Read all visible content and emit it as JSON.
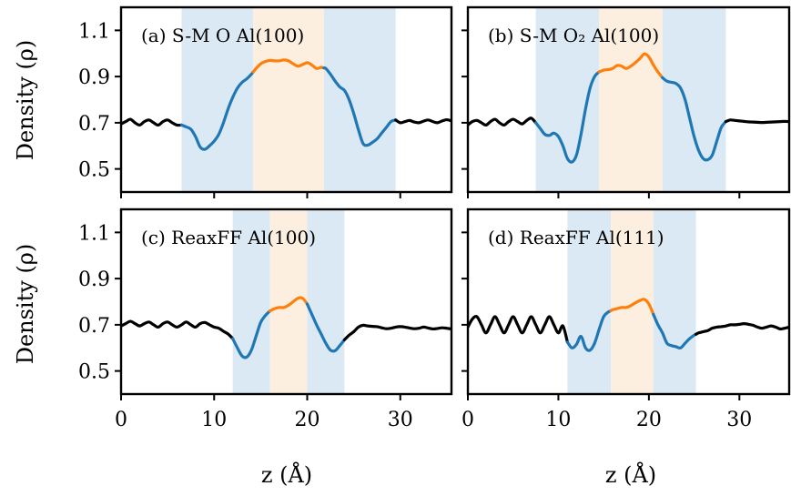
{
  "figure": {
    "ylabel": "Density (ρ)",
    "xlabel": "z (Å)"
  },
  "chart_data": [
    {
      "type": "line",
      "id": "a",
      "label": "(a) S-M O Al(100)",
      "xlim": [
        0,
        35.5
      ],
      "ylim": [
        0.4,
        1.2
      ],
      "xticks": [
        0,
        10,
        20,
        30
      ],
      "xtick_labels": [
        "0",
        "10",
        "20",
        "30"
      ],
      "yticks": [
        0.5,
        0.7,
        0.9,
        1.1
      ],
      "ytick_labels": [
        "0.5",
        "0.7",
        "0.9",
        "1.1"
      ],
      "regions": [
        {
          "kind": "interface",
          "x0": 6.5,
          "x1": 14.2,
          "color": "#dbe9f5"
        },
        {
          "kind": "core",
          "x0": 14.2,
          "x1": 21.8,
          "color": "#fdefdf"
        },
        {
          "kind": "interface",
          "x0": 21.8,
          "x1": 29.5,
          "color": "#dbe9f5"
        }
      ],
      "curve": {
        "x": [
          0,
          0.5,
          1,
          1.5,
          2,
          2.5,
          3,
          3.5,
          4,
          4.5,
          5,
          5.5,
          6,
          6.5,
          7,
          7.5,
          8,
          8.5,
          9,
          9.5,
          10,
          10.5,
          11,
          11.5,
          12,
          12.5,
          13,
          13.5,
          14,
          14.5,
          15,
          15.5,
          16,
          16.5,
          17,
          17.5,
          18,
          18.5,
          19,
          19.5,
          20,
          20.5,
          21,
          21.5,
          22,
          22.5,
          23,
          23.5,
          24,
          24.5,
          25,
          25.5,
          26,
          26.5,
          27,
          27.5,
          28,
          28.5,
          29,
          29.5,
          30,
          30.5,
          31,
          31.5,
          32,
          32.5,
          33,
          33.5,
          34,
          34.5,
          35,
          35.5
        ],
        "y": [
          0.695,
          0.705,
          0.715,
          0.7,
          0.69,
          0.705,
          0.712,
          0.7,
          0.69,
          0.705,
          0.712,
          0.7,
          0.69,
          0.69,
          0.682,
          0.672,
          0.64,
          0.595,
          0.585,
          0.6,
          0.62,
          0.65,
          0.7,
          0.76,
          0.81,
          0.85,
          0.875,
          0.89,
          0.91,
          0.935,
          0.955,
          0.965,
          0.97,
          0.968,
          0.968,
          0.972,
          0.968,
          0.955,
          0.945,
          0.952,
          0.96,
          0.95,
          0.935,
          0.94,
          0.935,
          0.91,
          0.88,
          0.855,
          0.84,
          0.8,
          0.74,
          0.67,
          0.61,
          0.603,
          0.615,
          0.63,
          0.655,
          0.68,
          0.705,
          0.712,
          0.7,
          0.705,
          0.71,
          0.703,
          0.7,
          0.707,
          0.712,
          0.705,
          0.7,
          0.708,
          0.713,
          0.708
        ]
      }
    },
    {
      "type": "line",
      "id": "b",
      "label": "(b) S-M O₂ Al(100)",
      "xlim": [
        0,
        35.5
      ],
      "ylim": [
        0.4,
        1.2
      ],
      "xticks": [
        0,
        10,
        20,
        30
      ],
      "xtick_labels": [
        "0",
        "10",
        "20",
        "30"
      ],
      "yticks": [
        0.5,
        0.7,
        0.9,
        1.1
      ],
      "ytick_labels": [
        "0.5",
        "0.7",
        "0.9",
        "1.1"
      ],
      "regions": [
        {
          "kind": "interface",
          "x0": 7.5,
          "x1": 14.5,
          "color": "#dbe9f5"
        },
        {
          "kind": "core",
          "x0": 14.5,
          "x1": 21.5,
          "color": "#fdefdf"
        },
        {
          "kind": "interface",
          "x0": 21.5,
          "x1": 28.5,
          "color": "#dbe9f5"
        }
      ],
      "curve": {
        "x": [
          0,
          0.5,
          1,
          1.5,
          2,
          2.5,
          3,
          3.5,
          4,
          4.5,
          5,
          5.5,
          6,
          6.5,
          7,
          7.5,
          8,
          8.5,
          9,
          9.5,
          10,
          10.5,
          11,
          11.5,
          12,
          12.5,
          13,
          13.5,
          14,
          14.5,
          15,
          15.5,
          16,
          16.5,
          17,
          17.5,
          18,
          18.5,
          19,
          19.5,
          20,
          20.5,
          21,
          21.5,
          22,
          22.5,
          23,
          23.5,
          24,
          24.5,
          25,
          25.5,
          26,
          26.5,
          27,
          27.5,
          28,
          28.5,
          29,
          29.5,
          30,
          30.5,
          31,
          31.5,
          32,
          32.5,
          33,
          33.5,
          34,
          34.5,
          35,
          35.5
        ],
        "y": [
          0.69,
          0.705,
          0.71,
          0.7,
          0.69,
          0.705,
          0.715,
          0.7,
          0.69,
          0.705,
          0.715,
          0.705,
          0.695,
          0.71,
          0.72,
          0.7,
          0.675,
          0.65,
          0.645,
          0.655,
          0.64,
          0.6,
          0.545,
          0.53,
          0.56,
          0.65,
          0.76,
          0.85,
          0.9,
          0.92,
          0.928,
          0.93,
          0.935,
          0.948,
          0.945,
          0.935,
          0.945,
          0.96,
          0.978,
          0.998,
          0.985,
          0.95,
          0.92,
          0.895,
          0.88,
          0.875,
          0.87,
          0.85,
          0.8,
          0.72,
          0.64,
          0.58,
          0.545,
          0.54,
          0.56,
          0.62,
          0.68,
          0.705,
          0.712,
          0.71,
          0.708,
          0.706,
          0.704,
          0.703,
          0.702,
          0.701,
          0.702,
          0.703,
          0.704,
          0.705,
          0.706,
          0.705
        ]
      }
    },
    {
      "type": "line",
      "id": "c",
      "label": "(c) ReaxFF Al(100)",
      "xlim": [
        0,
        35.5
      ],
      "ylim": [
        0.4,
        1.2
      ],
      "xticks": [
        0,
        10,
        20,
        30
      ],
      "xtick_labels": [
        "0",
        "10",
        "20",
        "30"
      ],
      "yticks": [
        0.5,
        0.7,
        0.9,
        1.1
      ],
      "ytick_labels": [
        "0.5",
        "0.7",
        "0.9",
        "1.1"
      ],
      "regions": [
        {
          "kind": "interface",
          "x0": 12.0,
          "x1": 16.0,
          "color": "#dbe9f5"
        },
        {
          "kind": "core",
          "x0": 16.0,
          "x1": 20.0,
          "color": "#fdefdf"
        },
        {
          "kind": "interface",
          "x0": 20.0,
          "x1": 24.0,
          "color": "#dbe9f5"
        }
      ],
      "curve": {
        "x": [
          0,
          0.5,
          1,
          1.5,
          2,
          2.5,
          3,
          3.5,
          4,
          4.5,
          5,
          5.5,
          6,
          6.5,
          7,
          7.5,
          8,
          8.5,
          9,
          9.5,
          10,
          10.5,
          11,
          11.5,
          12,
          12.5,
          13,
          13.5,
          14,
          14.5,
          15,
          15.5,
          16,
          16.5,
          17,
          17.5,
          18,
          18.5,
          19,
          19.5,
          20,
          20.5,
          21,
          21.5,
          22,
          22.5,
          23,
          23.5,
          24,
          24.5,
          25,
          25.5,
          26,
          26.5,
          27,
          27.5,
          28,
          28.5,
          29,
          29.5,
          30,
          30.5,
          31,
          31.5,
          32,
          32.5,
          33,
          33.5,
          34,
          34.5,
          35,
          35.5
        ],
        "y": [
          0.695,
          0.705,
          0.715,
          0.705,
          0.695,
          0.705,
          0.712,
          0.7,
          0.69,
          0.705,
          0.712,
          0.7,
          0.69,
          0.7,
          0.712,
          0.7,
          0.69,
          0.705,
          0.71,
          0.7,
          0.69,
          0.685,
          0.672,
          0.66,
          0.64,
          0.6,
          0.565,
          0.56,
          0.59,
          0.65,
          0.71,
          0.74,
          0.76,
          0.77,
          0.775,
          0.775,
          0.785,
          0.8,
          0.815,
          0.815,
          0.79,
          0.745,
          0.7,
          0.66,
          0.62,
          0.59,
          0.588,
          0.61,
          0.635,
          0.655,
          0.67,
          0.69,
          0.698,
          0.695,
          0.693,
          0.692,
          0.687,
          0.683,
          0.685,
          0.69,
          0.692,
          0.69,
          0.686,
          0.683,
          0.685,
          0.69,
          0.686,
          0.682,
          0.684,
          0.687,
          0.685,
          0.682
        ]
      }
    },
    {
      "type": "line",
      "id": "d",
      "label": "(d) ReaxFF Al(111)",
      "xlim": [
        0,
        35.5
      ],
      "ylim": [
        0.4,
        1.2
      ],
      "xticks": [
        0,
        10,
        20,
        30
      ],
      "xtick_labels": [
        "0",
        "10",
        "20",
        "30"
      ],
      "yticks": [
        0.5,
        0.7,
        0.9,
        1.1
      ],
      "ytick_labels": [
        "0.5",
        "0.7",
        "0.9",
        "1.1"
      ],
      "regions": [
        {
          "kind": "interface",
          "x0": 11.0,
          "x1": 15.8,
          "color": "#dbe9f5"
        },
        {
          "kind": "core",
          "x0": 15.8,
          "x1": 20.5,
          "color": "#fdefdf"
        },
        {
          "kind": "interface",
          "x0": 20.5,
          "x1": 25.2,
          "color": "#dbe9f5"
        }
      ],
      "curve": {
        "x": [
          0,
          0.5,
          1,
          1.5,
          2,
          2.5,
          3,
          3.5,
          4,
          4.5,
          5,
          5.5,
          6,
          6.5,
          7,
          7.5,
          8,
          8.5,
          9,
          9.5,
          10,
          10.5,
          11,
          11.5,
          12,
          12.5,
          13,
          13.5,
          14,
          14.5,
          15,
          15.5,
          16,
          16.5,
          17,
          17.5,
          18,
          18.5,
          19,
          19.5,
          20,
          20.5,
          21,
          21.5,
          22,
          22.5,
          23,
          23.5,
          24,
          24.5,
          25,
          25.5,
          26,
          26.5,
          27,
          27.5,
          28,
          28.5,
          29,
          29.5,
          30,
          30.5,
          31,
          31.5,
          32,
          32.5,
          33,
          33.5,
          34,
          34.5,
          35,
          35.5
        ],
        "y": [
          0.69,
          0.725,
          0.735,
          0.7,
          0.665,
          0.7,
          0.735,
          0.7,
          0.665,
          0.7,
          0.735,
          0.7,
          0.665,
          0.7,
          0.735,
          0.7,
          0.665,
          0.7,
          0.735,
          0.7,
          0.665,
          0.695,
          0.625,
          0.6,
          0.615,
          0.65,
          0.6,
          0.59,
          0.62,
          0.68,
          0.735,
          0.755,
          0.765,
          0.77,
          0.775,
          0.775,
          0.783,
          0.795,
          0.805,
          0.81,
          0.79,
          0.745,
          0.7,
          0.665,
          0.62,
          0.61,
          0.605,
          0.6,
          0.62,
          0.64,
          0.655,
          0.665,
          0.67,
          0.675,
          0.685,
          0.69,
          0.692,
          0.695,
          0.7,
          0.7,
          0.702,
          0.705,
          0.702,
          0.698,
          0.69,
          0.685,
          0.69,
          0.695,
          0.69,
          0.682,
          0.685,
          0.69
        ]
      }
    }
  ]
}
